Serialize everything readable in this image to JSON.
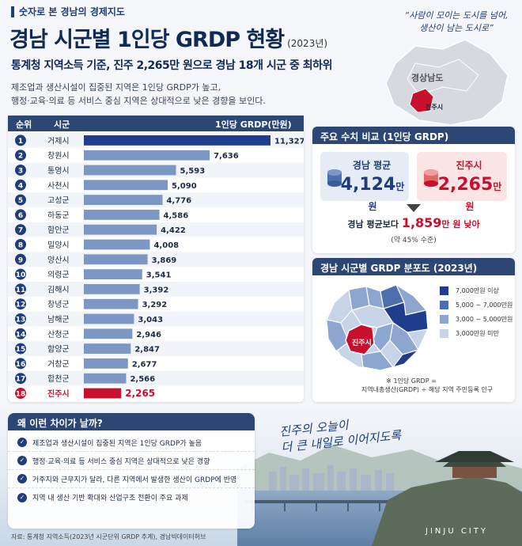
{
  "header": {
    "category": "숫자로 본 경남의 경제지도",
    "title": "경남 시군별 1인당 GRDP 현황",
    "year": "(2023년)",
    "subtitle": "통계청 지역소득 기준, 진주 2,265만 원으로 경남 18개 시군 중 최하위",
    "description": "제조업과 생산시설이 집중된 지역은 1인당 GRDP가 높고,\n행정·교육·의료 등 서비스 중심 지역은 상대적으로 낮은 경향을 보인다.",
    "quote": "“사람이 모이는 도시를 넘어,\n생산이 남는 도시로”"
  },
  "locator_map": {
    "region_label": "경상남도",
    "city_label": "진주시"
  },
  "chart_data": {
    "type": "bar",
    "orientation": "horizontal",
    "columns": [
      "순위",
      "시군",
      "1인당 GRDP(만원)"
    ],
    "ranks": [
      "1",
      "2",
      "3",
      "4",
      "5",
      "6",
      "7",
      "8",
      "9",
      "10",
      "11",
      "12",
      "13",
      "14",
      "15",
      "16",
      "17",
      "18"
    ],
    "categories": [
      "거제시",
      "창원시",
      "통영시",
      "사천시",
      "고성군",
      "하동군",
      "함안군",
      "밀양시",
      "양산시",
      "의령군",
      "김해시",
      "창녕군",
      "남해군",
      "산청군",
      "함양군",
      "거창군",
      "합천군",
      "진주시"
    ],
    "values": [
      11327,
      7636,
      5593,
      5090,
      4776,
      4586,
      4422,
      4008,
      3869,
      3541,
      3392,
      3292,
      3043,
      2946,
      2847,
      2677,
      2566,
      2265
    ],
    "value_labels": [
      "11,327",
      "7,636",
      "5,593",
      "5,090",
      "4,776",
      "4,586",
      "4,422",
      "4,008",
      "3,869",
      "3,541",
      "3,392",
      "3,292",
      "3,043",
      "2,946",
      "2,847",
      "2,677",
      "2,566",
      "2,265"
    ],
    "highlight": "진주시",
    "colors": {
      "top": "#1f3d8c",
      "normal": "#7d97c4",
      "highlight": "#c8102e"
    }
  },
  "comparison": {
    "title": "주요 수치 비교 (1인당 GRDP)",
    "avg_label": "경남 평균",
    "avg_value": "4,124",
    "unit": "만 원",
    "jinju_label": "진주시",
    "jinju_value": "2,265",
    "diff_prefix": "경남 평균보다",
    "diff_value": "1,859",
    "diff_unit": "만 원",
    "diff_suffix": "낮아",
    "diff_note": "(약 45% 수준)"
  },
  "distribution": {
    "title": "경남 시군별 GRDP 분포도 (2023년)",
    "city_label": "진주시",
    "legend": [
      {
        "label": "7,000만원 이상",
        "color": "#1f3d8c"
      },
      {
        "label": "5,000 ~ 7,000만원",
        "color": "#4e6fae"
      },
      {
        "label": "3,000 ~ 5,000만원",
        "color": "#8da6cf"
      },
      {
        "label": "3,000만원 미만",
        "color": "#c7d3e6"
      }
    ],
    "note_line1": "※ 1인당 GRDP =",
    "note_line2": "지역내총생산(GRDP) ÷ 해당 지역 주민등록 인구"
  },
  "why": {
    "title": "왜 이런 차이가 날까?",
    "items": [
      "제조업과 생산시설이 집중된 지역은 1인당 GRDP가 높음",
      "행정·교육·의료 등 서비스 중심 지역은 상대적으로 낮은 경향",
      "거주지와 근무지가 달라, 다른 지역에서 발생한 생산이 GRDP에 반영",
      "지역 내 생산 기반 확대와 산업구조 전환이 주요 과제"
    ]
  },
  "scene": {
    "slogan": "진주의 오늘이\n더 큰 내일로 이어지도록",
    "city_text": "JINJU  CITY"
  },
  "source": "자료: 통계청 지역소득(2023년 시군단위 GRDP 추계), 경남빅데이터허브"
}
